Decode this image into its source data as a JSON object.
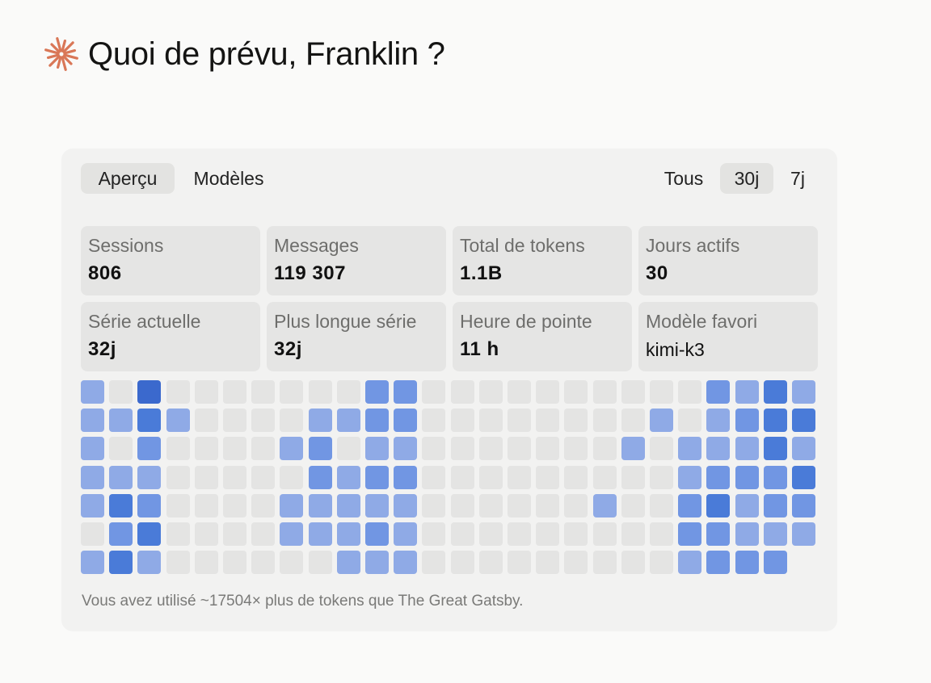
{
  "greeting": {
    "icon": "sparkle-icon",
    "icon_color": "#d97757",
    "title": "Quoi de prévu, Franklin ?"
  },
  "panel": {
    "view_tabs": [
      {
        "label": "Aperçu",
        "active": true
      },
      {
        "label": "Modèles",
        "active": false
      }
    ],
    "range_tabs": [
      {
        "label": "Tous",
        "active": false
      },
      {
        "label": "30j",
        "active": true
      },
      {
        "label": "7j",
        "active": false
      }
    ],
    "stats": [
      {
        "label": "Sessions",
        "value": "806"
      },
      {
        "label": "Messages",
        "value": "119 307"
      },
      {
        "label": "Total de tokens",
        "value": "1.1B"
      },
      {
        "label": "Jours actifs",
        "value": "30"
      },
      {
        "label": "Série actuelle",
        "value": "32j"
      },
      {
        "label": "Plus longue série",
        "value": "32j"
      },
      {
        "label": "Heure de pointe",
        "value": "11 h"
      },
      {
        "label": "Modèle favori",
        "value": "kimi-k3"
      }
    ],
    "heatmap": {
      "colors": [
        "#e4e4e3",
        "#8faae6",
        "#7196e3",
        "#4a7bd8",
        "#3b69cd"
      ],
      "levels": [
        [
          1,
          0,
          4,
          0,
          0,
          0,
          0,
          0,
          0,
          0,
          2,
          2,
          0,
          0,
          0,
          0,
          0,
          0,
          0,
          0,
          0,
          0,
          2,
          1,
          3,
          1
        ],
        [
          1,
          1,
          3,
          1,
          0,
          0,
          0,
          0,
          1,
          1,
          2,
          2,
          0,
          0,
          0,
          0,
          0,
          0,
          0,
          0,
          1,
          0,
          1,
          2,
          3,
          3
        ],
        [
          1,
          0,
          2,
          0,
          0,
          0,
          0,
          1,
          2,
          0,
          1,
          1,
          0,
          0,
          0,
          0,
          0,
          0,
          0,
          1,
          0,
          1,
          1,
          1,
          3,
          1
        ],
        [
          1,
          1,
          1,
          0,
          0,
          0,
          0,
          0,
          2,
          1,
          2,
          2,
          0,
          0,
          0,
          0,
          0,
          0,
          0,
          0,
          0,
          1,
          2,
          2,
          2,
          3
        ],
        [
          1,
          3,
          2,
          0,
          0,
          0,
          0,
          1,
          1,
          1,
          1,
          1,
          0,
          0,
          0,
          0,
          0,
          0,
          1,
          0,
          0,
          2,
          3,
          1,
          2,
          2
        ],
        [
          0,
          2,
          3,
          0,
          0,
          0,
          0,
          1,
          1,
          1,
          2,
          1,
          0,
          0,
          0,
          0,
          0,
          0,
          0,
          0,
          0,
          2,
          2,
          1,
          1,
          1
        ],
        [
          1,
          3,
          1,
          0,
          0,
          0,
          0,
          0,
          0,
          1,
          1,
          1,
          0,
          0,
          0,
          0,
          0,
          0,
          0,
          0,
          0,
          1,
          2,
          2,
          2,
          -1
        ]
      ]
    },
    "footer": "Vous avez utilisé ~17504× plus de tokens que The Great Gatsby."
  }
}
